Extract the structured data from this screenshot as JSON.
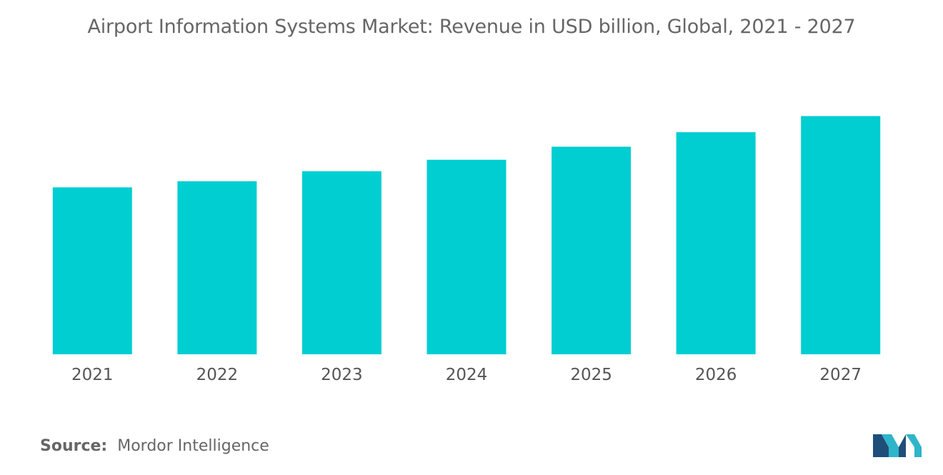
{
  "chart_data": {
    "type": "bar",
    "title": "Airport Information Systems Market: Revenue in USD billion, Global, 2021 - 2027",
    "categories": [
      "2021",
      "2022",
      "2023",
      "2024",
      "2025",
      "2026",
      "2027"
    ],
    "values": [
      218,
      226,
      239,
      254,
      271,
      290,
      311
    ],
    "ylim": [
      0,
      360
    ],
    "xlabel": "",
    "ylabel": "",
    "grid": false,
    "bar_color": "#00CED1"
  },
  "footer": {
    "source_label": "Source:",
    "source_value": "Mordor Intelligence"
  },
  "brand": {
    "logo_colors": [
      "#1F4E79",
      "#2EB5C9"
    ]
  }
}
